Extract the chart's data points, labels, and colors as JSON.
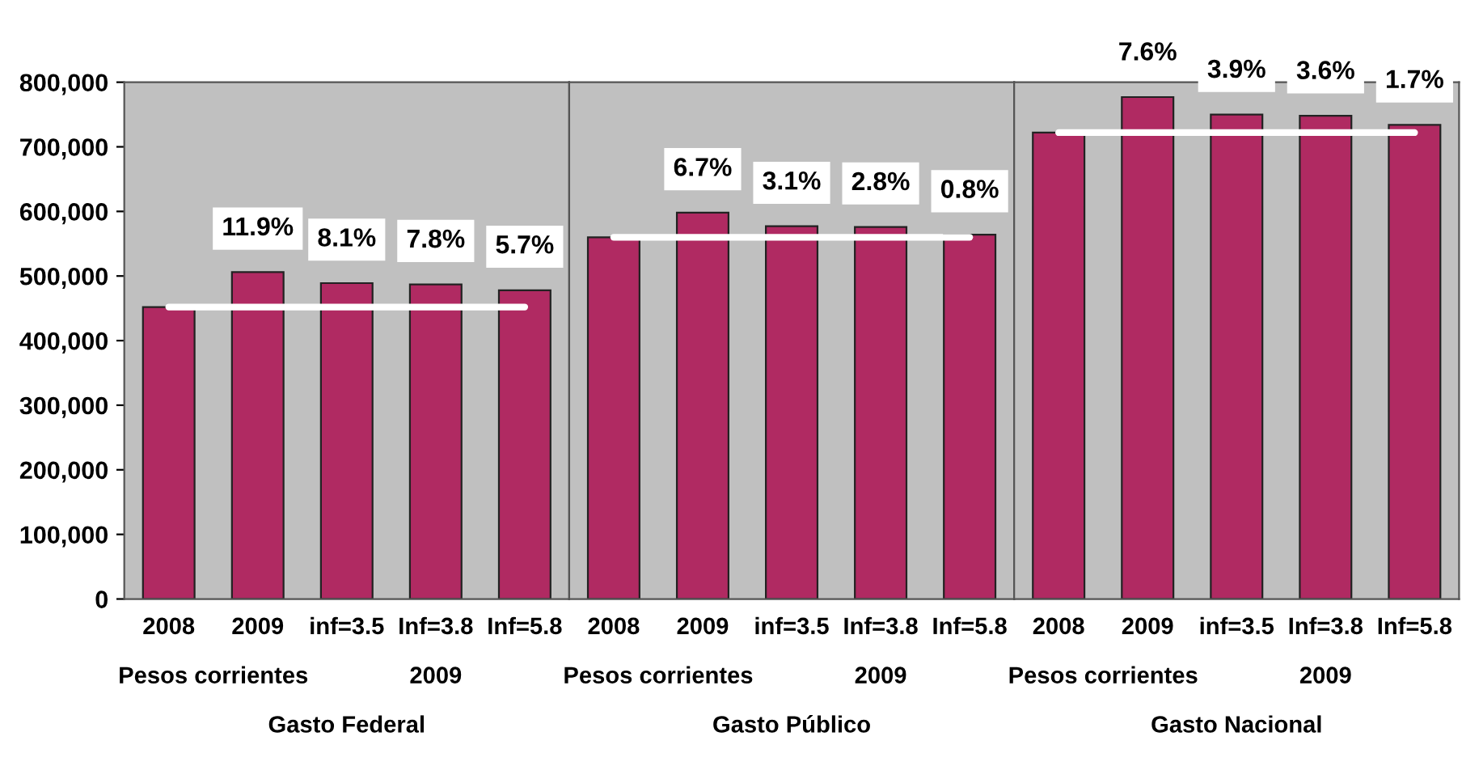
{
  "chart_data": [
    {
      "type": "bar",
      "xlabel": "Gasto Federal",
      "categories": [
        "2008",
        "2009",
        "inf=3.5",
        "Inf=3.8",
        "Inf=5.8"
      ],
      "values": [
        452000,
        506000,
        489000,
        487000,
        478000
      ],
      "color": "#b02a62",
      "ylim": [
        0,
        800000
      ],
      "yticks": [
        {
          "value": 0,
          "label": "0"
        },
        {
          "value": 100000,
          "label": "100,000"
        },
        {
          "value": 200000,
          "label": "200,000"
        },
        {
          "value": 300000,
          "label": "300,000"
        },
        {
          "value": 400000,
          "label": "400,000"
        },
        {
          "value": 500000,
          "label": "500,000"
        },
        {
          "value": 600000,
          "label": "600,000"
        },
        {
          "value": 700000,
          "label": "700,000"
        },
        {
          "value": 800000,
          "label": "800,000"
        }
      ],
      "ref_lines": [
        {
          "axis": "y",
          "value": 452000,
          "color": "#ffffff"
        }
      ],
      "annotations": [
        "Pesos corrientes",
        "2009",
        {
          "text": "11.9%",
          "x": "2009",
          "y": 506000
        },
        {
          "text": "8.1%",
          "x": "inf=3.5",
          "y": 489000
        },
        {
          "text": "7.8%",
          "x": "Inf=3.8",
          "y": 487000
        },
        {
          "text": "5.7%",
          "x": "Inf=5.8",
          "y": 478000
        }
      ],
      "grid": false,
      "legend": false
    },
    {
      "type": "bar",
      "xlabel": "Gasto Público",
      "categories": [
        "2008",
        "2009",
        "inf=3.5",
        "Inf=3.8",
        "Inf=5.8"
      ],
      "values": [
        560000,
        598000,
        577000,
        576000,
        564000
      ],
      "color": "#b02a62",
      "ylim": [
        0,
        800000
      ],
      "ref_lines": [
        {
          "axis": "y",
          "value": 560000,
          "color": "#ffffff"
        }
      ],
      "annotations": [
        "Pesos corrientes",
        "2009",
        {
          "text": "6.7%",
          "x": "2009",
          "y": 598000
        },
        {
          "text": "3.1%",
          "x": "inf=3.5",
          "y": 577000
        },
        {
          "text": "2.8%",
          "x": "Inf=3.8",
          "y": 576000
        },
        {
          "text": "0.8%",
          "x": "Inf=5.8",
          "y": 564000
        }
      ],
      "tick_labels": "x",
      "grid": false,
      "legend": false
    },
    {
      "type": "bar",
      "xlabel": "Gasto Nacional",
      "categories": [
        "2008",
        "2009",
        "inf=3.5",
        "Inf=3.8",
        "Inf=5.8"
      ],
      "values": [
        722000,
        777000,
        750000,
        748000,
        734000
      ],
      "color": "#b02a62",
      "ylim": [
        0,
        800000
      ],
      "ref_lines": [
        {
          "axis": "y",
          "value": 722000,
          "color": "#ffffff"
        }
      ],
      "annotations": [
        "Pesos corrientes",
        "2009",
        {
          "text": "7.6%",
          "x": "2009",
          "y": 777000
        },
        {
          "text": "3.9%",
          "x": "inf=3.5",
          "y": 750000
        },
        {
          "text": "3.6%",
          "x": "Inf=3.8",
          "y": 748000
        },
        {
          "text": "1.7%",
          "x": "Inf=5.8",
          "y": 734000
        }
      ],
      "tick_labels": "x",
      "grid": false,
      "legend": false
    }
  ]
}
